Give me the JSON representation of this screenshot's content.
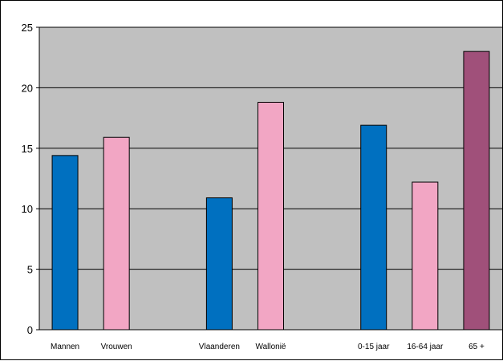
{
  "chart_data": {
    "type": "bar",
    "title": "",
    "xlabel": "",
    "ylabel": "",
    "ylim": [
      0,
      25
    ],
    "yticks": [
      0,
      5,
      10,
      15,
      20,
      25
    ],
    "grid": true,
    "legend": "none",
    "plot_background": "#C0C0C0",
    "categories": [
      "Mannen",
      "Vrouwen",
      "",
      "Vlaanderen",
      "Wallonië",
      "",
      "0-15 jaar",
      "16-64 jaar",
      "65 +"
    ],
    "values": [
      14.4,
      15.9,
      null,
      10.9,
      18.8,
      null,
      16.9,
      12.2,
      23.0
    ],
    "colors": [
      "#0070C0",
      "#F2A6C4",
      null,
      "#0070C0",
      "#F2A6C4",
      null,
      "#0070C0",
      "#F2A6C4",
      "#A0507A"
    ]
  }
}
